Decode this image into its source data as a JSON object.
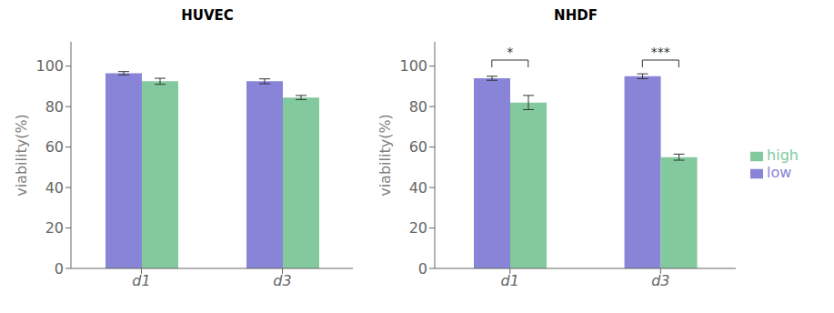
{
  "chart_data": [
    {
      "type": "bar",
      "title": "HUVEC",
      "categories": [
        "d1",
        "d3"
      ],
      "series": [
        {
          "name": "low",
          "color": "#8884d8",
          "values": [
            96.5,
            92.5
          ],
          "errors": [
            0.8,
            1.2
          ]
        },
        {
          "name": "high",
          "color": "#82ca9d",
          "values": [
            92.5,
            84.5
          ],
          "errors": [
            1.5,
            1.0
          ]
        }
      ],
      "ylabel": "viability(%)",
      "ylim": [
        0,
        112
      ],
      "yticks": [
        0,
        20,
        40,
        60,
        80,
        100
      ],
      "grid": false
    },
    {
      "type": "bar",
      "title": "NHDF",
      "categories": [
        "d1",
        "d3"
      ],
      "series": [
        {
          "name": "low",
          "color": "#8884d8",
          "values": [
            94.0,
            95.0
          ],
          "errors": [
            1.0,
            1.2
          ]
        },
        {
          "name": "high",
          "color": "#82ca9d",
          "values": [
            82.0,
            55.0
          ],
          "errors": [
            3.5,
            1.5
          ]
        }
      ],
      "annotations": [
        {
          "category": "d1",
          "text": "*",
          "y": 103
        },
        {
          "category": "d3",
          "text": "***",
          "y": 103
        }
      ],
      "ylabel": "viability(%)",
      "ylim": [
        0,
        112
      ],
      "yticks": [
        0,
        20,
        40,
        60,
        80,
        100
      ],
      "grid": false,
      "legend": "right"
    }
  ]
}
